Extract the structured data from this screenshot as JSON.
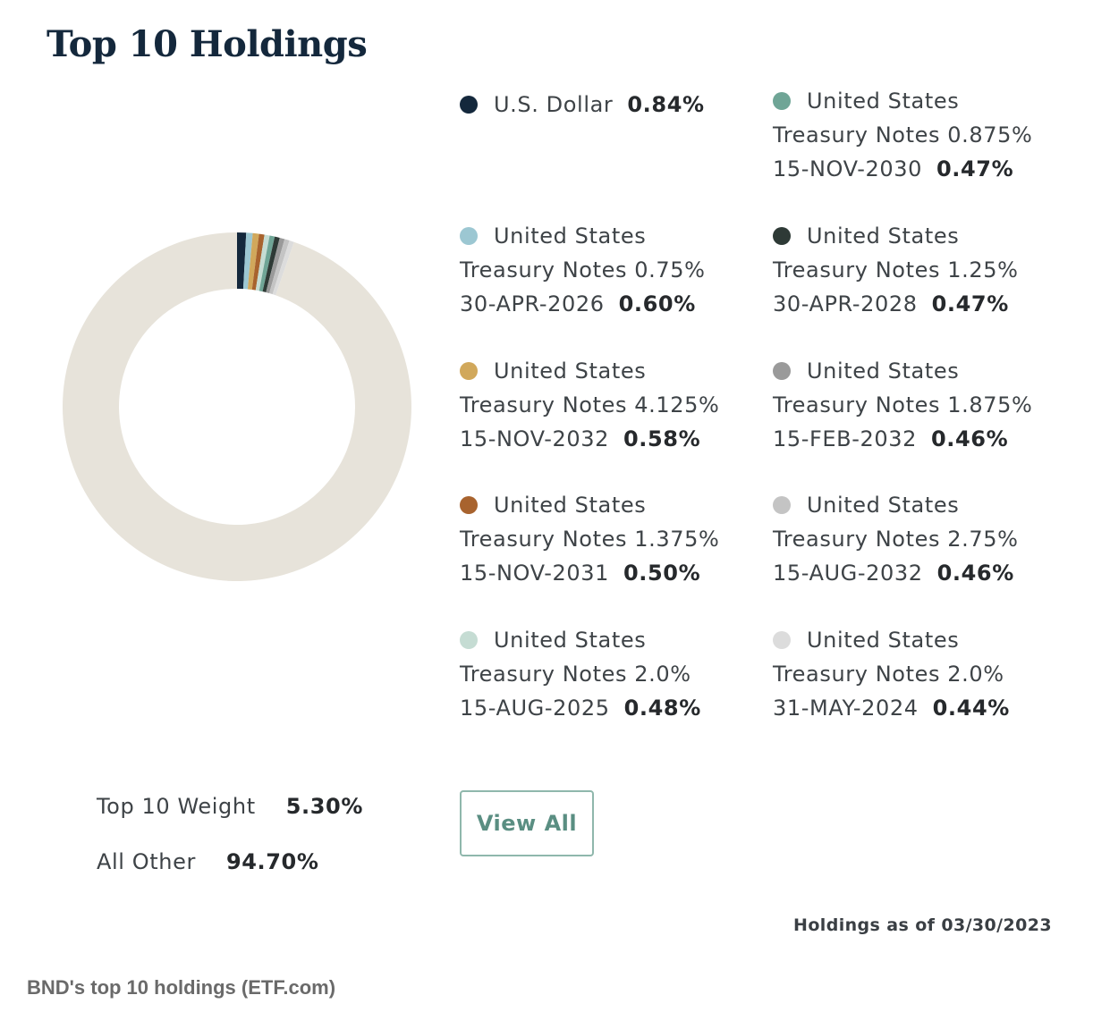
{
  "title": "Top 10 Holdings",
  "chart_data": {
    "type": "pie",
    "variant": "donut",
    "legend": "right",
    "series": [
      {
        "name": "U.S. Dollar",
        "value": 0.84,
        "label": "0.84%",
        "color": "#14283c"
      },
      {
        "name": "United States Treasury Notes 0.75% 30-APR-2026",
        "value": 0.6,
        "label": "0.60%",
        "color": "#9cc7d2"
      },
      {
        "name": "United States Treasury Notes 4.125% 15-NOV-2032",
        "value": 0.58,
        "label": "0.58%",
        "color": "#d1a85b"
      },
      {
        "name": "United States Treasury Notes 1.375% 15-NOV-2031",
        "value": 0.5,
        "label": "0.50%",
        "color": "#a8632e"
      },
      {
        "name": "United States Treasury Notes 2.0% 15-AUG-2025",
        "value": 0.48,
        "label": "0.48%",
        "color": "#c5dcd3"
      },
      {
        "name": "United States Treasury Notes 0.875% 15-NOV-2030",
        "value": 0.47,
        "label": "0.47%",
        "color": "#6fa596"
      },
      {
        "name": "United States Treasury Notes 1.25% 30-APR-2028",
        "value": 0.47,
        "label": "0.47%",
        "color": "#2e3a36"
      },
      {
        "name": "United States Treasury Notes 1.875% 15-FEB-2032",
        "value": 0.46,
        "label": "0.46%",
        "color": "#9a9a9a"
      },
      {
        "name": "United States Treasury Notes 2.75% 15-AUG-2032",
        "value": 0.46,
        "label": "0.46%",
        "color": "#c4c4c4"
      },
      {
        "name": "United States Treasury Notes 2.0% 31-MAY-2024",
        "value": 0.44,
        "label": "0.44%",
        "color": "#dcdcdc"
      },
      {
        "name": "All Other",
        "value": 94.7,
        "label": "94.70%",
        "color": "#e7e3da"
      }
    ]
  },
  "legend": [
    {
      "line1": "U.S. Dollar",
      "line2": "",
      "line3": "",
      "pct": "0.84%",
      "color": "#14283c"
    },
    {
      "line1": "United States",
      "line2": "Treasury Notes 0.875%",
      "line3": "15-NOV-2030",
      "pct": "0.47%",
      "color": "#6fa596"
    },
    {
      "line1": "United States",
      "line2": "Treasury Notes 0.75%",
      "line3": "30-APR-2026",
      "pct": "0.60%",
      "color": "#9cc7d2"
    },
    {
      "line1": "United States",
      "line2": "Treasury Notes 1.25%",
      "line3": "30-APR-2028",
      "pct": "0.47%",
      "color": "#2e3a36"
    },
    {
      "line1": "United States",
      "line2": "Treasury Notes 4.125%",
      "line3": "15-NOV-2032",
      "pct": "0.58%",
      "color": "#d1a85b"
    },
    {
      "line1": "United States",
      "line2": "Treasury Notes 1.875%",
      "line3": "15-FEB-2032",
      "pct": "0.46%",
      "color": "#9a9a9a"
    },
    {
      "line1": "United States",
      "line2": "Treasury Notes 1.375%",
      "line3": "15-NOV-2031",
      "pct": "0.50%",
      "color": "#a8632e"
    },
    {
      "line1": "United States",
      "line2": "Treasury Notes 2.75%",
      "line3": "15-AUG-2032",
      "pct": "0.46%",
      "color": "#c4c4c4"
    },
    {
      "line1": "United States",
      "line2": "Treasury Notes 2.0%",
      "line3": "15-AUG-2025",
      "pct": "0.48%",
      "color": "#c5dcd3"
    },
    {
      "line1": "United States",
      "line2": "Treasury Notes 2.0%",
      "line3": "31-MAY-2024",
      "pct": "0.44%",
      "color": "#dcdcdc"
    }
  ],
  "weights": {
    "top10_label": "Top 10 Weight",
    "top10_value": "5.30%",
    "other_label": "All Other",
    "other_value": "94.70%"
  },
  "view_all_label": "View All",
  "as_of": "Holdings as of 03/30/2023",
  "caption": "BND's top 10 holdings (ETF.com)"
}
